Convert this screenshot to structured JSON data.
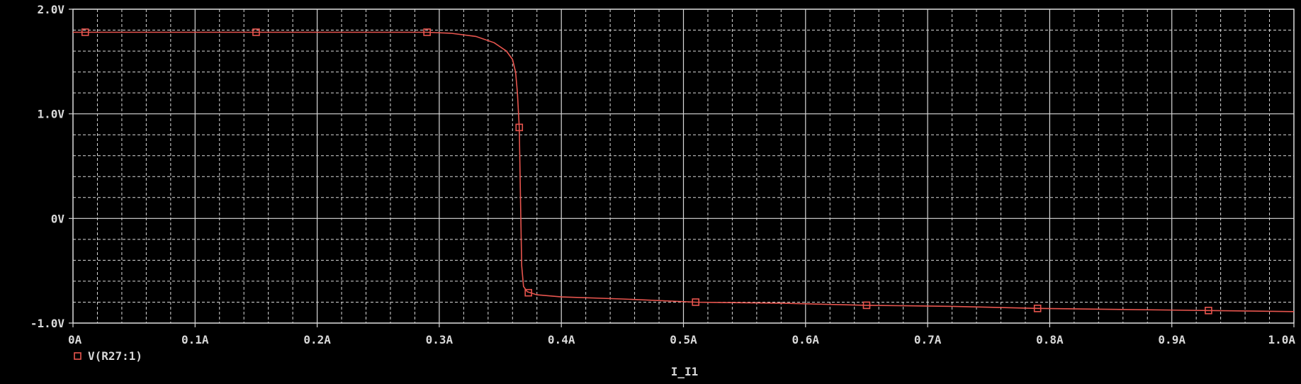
{
  "chart_data": {
    "type": "line",
    "title": "",
    "xlabel": "I_I1",
    "ylabel": "",
    "xlim": [
      0,
      1.0
    ],
    "ylim": [
      -1.0,
      2.0
    ],
    "x_ticks": [
      {
        "value": 0.0,
        "label": "0A"
      },
      {
        "value": 0.1,
        "label": "0.1A"
      },
      {
        "value": 0.2,
        "label": "0.2A"
      },
      {
        "value": 0.3,
        "label": "0.3A"
      },
      {
        "value": 0.4,
        "label": "0.4A"
      },
      {
        "value": 0.5,
        "label": "0.5A"
      },
      {
        "value": 0.6,
        "label": "0.6A"
      },
      {
        "value": 0.7,
        "label": "0.7A"
      },
      {
        "value": 0.8,
        "label": "0.8A"
      },
      {
        "value": 0.9,
        "label": "0.9A"
      },
      {
        "value": 1.0,
        "label": "1.0A"
      }
    ],
    "y_ticks": [
      {
        "value": 2.0,
        "label": "2.0V"
      },
      {
        "value": 1.0,
        "label": "1.0V"
      },
      {
        "value": 0.0,
        "label": "0V"
      },
      {
        "value": -1.0,
        "label": "-1.0V"
      }
    ],
    "grid": true,
    "legend_position": "bottom-left",
    "colors": {
      "background": "#000000",
      "grid": "#d9d9d9",
      "axis_text": "#d9d9d9",
      "trace": "#e8554e"
    },
    "series": [
      {
        "name": "V(R27:1)",
        "marker": "square",
        "x": [
          0.0,
          0.01,
          0.15,
          0.25,
          0.29,
          0.31,
          0.33,
          0.345,
          0.355,
          0.36,
          0.3625,
          0.364,
          0.3655,
          0.3665,
          0.3675,
          0.369,
          0.372,
          0.38,
          0.4,
          0.45,
          0.51,
          0.58,
          0.65,
          0.72,
          0.79,
          0.86,
          0.93,
          1.0
        ],
        "values": [
          1.78,
          1.78,
          1.78,
          1.78,
          1.78,
          1.77,
          1.74,
          1.68,
          1.6,
          1.52,
          1.4,
          1.2,
          0.87,
          0.2,
          -0.45,
          -0.65,
          -0.7,
          -0.73,
          -0.75,
          -0.77,
          -0.8,
          -0.81,
          -0.83,
          -0.84,
          -0.86,
          -0.87,
          -0.88,
          -0.89
        ]
      }
    ],
    "marker_points": [
      {
        "x": 0.01,
        "y": 1.78
      },
      {
        "x": 0.15,
        "y": 1.78
      },
      {
        "x": 0.29,
        "y": 1.78
      },
      {
        "x": 0.3655,
        "y": 0.87
      },
      {
        "x": 0.373,
        "y": -0.71
      },
      {
        "x": 0.51,
        "y": -0.8
      },
      {
        "x": 0.65,
        "y": -0.83
      },
      {
        "x": 0.79,
        "y": -0.86
      },
      {
        "x": 0.93,
        "y": -0.88
      }
    ]
  }
}
